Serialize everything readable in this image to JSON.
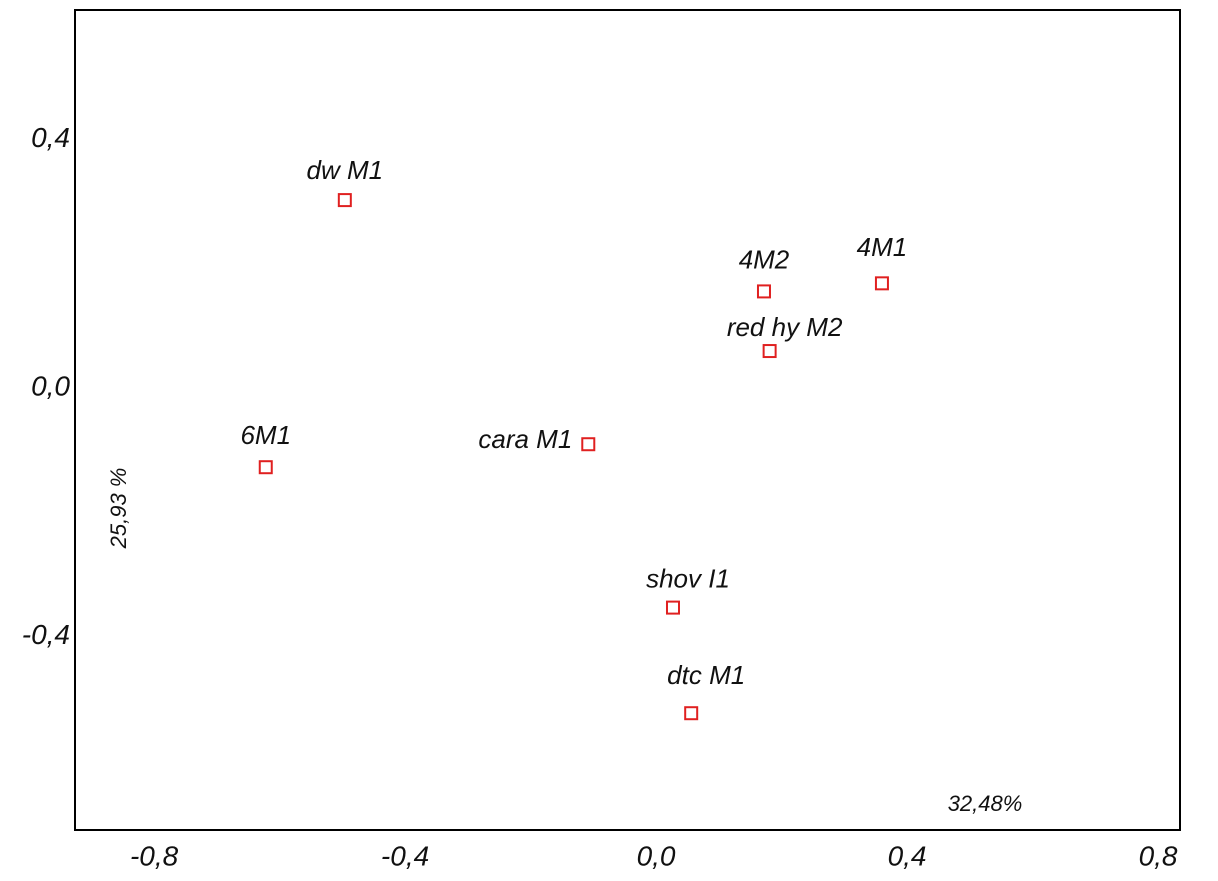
{
  "chart_data": {
    "type": "scatter",
    "color": "#e02020",
    "labels": [
      "dw M1",
      "4M2",
      "4M1",
      "red hy M2",
      "6M1",
      "cara M1",
      "shov I1",
      "dtc M1"
    ],
    "x": [
      -0.496,
      0.172,
      0.36,
      0.181,
      -0.622,
      -0.108,
      0.027,
      0.056
    ],
    "values": [
      0.303,
      0.156,
      0.169,
      0.06,
      -0.127,
      -0.09,
      -0.353,
      -0.523
    ],
    "xlim": [
      -0.926,
      0.835
    ],
    "ylim": [
      -0.711,
      0.609
    ],
    "xticks": [
      {
        "value": -0.8,
        "label": "-0,8"
      },
      {
        "value": -0.4,
        "label": "-0,4"
      },
      {
        "value": 0,
        "label": "0,0"
      },
      {
        "value": 0.4,
        "label": "0,4"
      },
      {
        "value": 0.8,
        "label": "0,8"
      }
    ],
    "yticks": [
      {
        "value": -0.4,
        "label": "-0,4"
      },
      {
        "value": 0,
        "label": "0,0"
      },
      {
        "value": 0.4,
        "label": "0,4"
      }
    ],
    "x_label": "32,48%",
    "y_label": "25,93 %"
  }
}
